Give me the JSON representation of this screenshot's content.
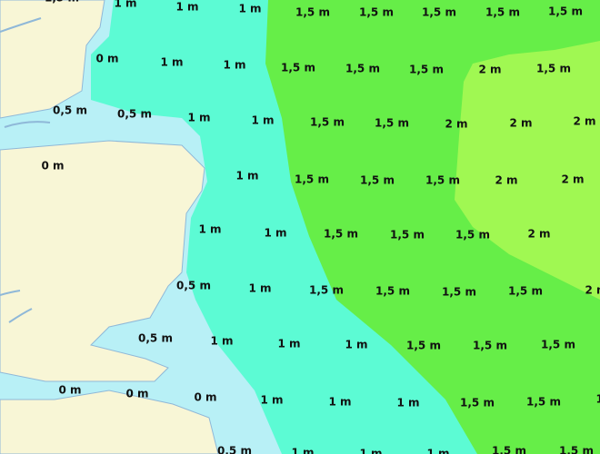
{
  "labels": [
    "1,5 m",
    "1 m",
    "1 m",
    "1 m",
    "1,5 m",
    "1,5 m",
    "1,5 m",
    "1,5 m",
    "1,5 m",
    "0 m",
    "1 m",
    "1 m",
    "1,5 m",
    "1,5 m",
    "1,5 m",
    "2 m",
    "1,5 m",
    "0,5 m",
    "0,5 m",
    "1 m",
    "1 m",
    "1,5 m",
    "1,5 m",
    "2 m",
    "2 m",
    "2 m",
    "0 m",
    "1 m",
    "1,5 m",
    "1,5 m",
    "1,5 m",
    "2 m",
    "2 m",
    "1 m",
    "1 m",
    "1,5 m",
    "1,5 m",
    "1,5 m",
    "2 m",
    "2 m",
    "0,5 m",
    "1 m",
    "1,5 m",
    "1,5 m",
    "1,5 m",
    "1,5 m",
    "2 m",
    "0,5 m",
    "1 m",
    "1 m",
    "1 m",
    "1,5 m",
    "1,5 m",
    "1,5 m",
    "0 m",
    "0 m",
    "0 m",
    "1 m",
    "1 m",
    "1 m",
    "1,5 m",
    "1,5 m",
    "1 m",
    "0,5 m",
    "1 m",
    "1 m",
    "1 m",
    "1,5 m",
    "1,5 m"
  ]
}
